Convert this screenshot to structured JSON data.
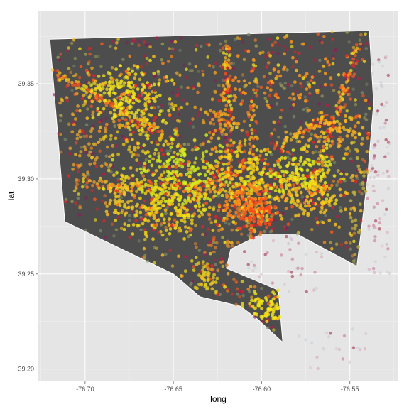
{
  "chart_data": {
    "type": "scatter",
    "title": "",
    "xlabel": "long",
    "ylabel": "lat",
    "xlim": [
      -76.7265,
      -76.5225
    ],
    "ylim": [
      39.1935,
      39.3885
    ],
    "x_ticks": [
      -76.7,
      -76.65,
      -76.6,
      -76.55
    ],
    "x_tick_labels": [
      "-76.70",
      "-76.65",
      "-76.60",
      "-76.55"
    ],
    "y_ticks": [
      39.2,
      39.25,
      39.3,
      39.35
    ],
    "y_tick_labels": [
      "39.20",
      "39.25",
      "39.30",
      "39.35"
    ],
    "grid": true,
    "legend": "none",
    "colors": {
      "panel_background": "#e5e5e5",
      "grid": "#ffffff",
      "boundary_fill": "#4d4d4d",
      "boundary_stroke": "#ffffff"
    },
    "boundary_polygon": {
      "long": [
        -76.7115,
        -76.72,
        -76.539,
        -76.5365,
        -76.54,
        -76.546,
        -76.58,
        -76.6,
        -76.6175,
        -76.62,
        -76.5905,
        -76.588,
        -76.595,
        -76.602,
        -76.612,
        -76.635,
        -76.65,
        -76.6725
      ],
      "lat": [
        39.2775,
        39.3735,
        39.378,
        39.34,
        39.3,
        39.254,
        39.271,
        39.271,
        39.263,
        39.253,
        39.2415,
        39.214,
        39.22,
        39.226,
        39.233,
        39.238,
        39.25,
        39.26
      ]
    },
    "hotspots": [
      {
        "long": -76.672,
        "lat": 39.343,
        "spread_long": 0.01,
        "spread_lat": 0.009,
        "count": 160,
        "color": "#f5e51a"
      },
      {
        "long": -76.69,
        "lat": 39.348,
        "spread_long": 0.006,
        "spread_lat": 0.004,
        "count": 50,
        "color": "#e8d820"
      },
      {
        "long": -76.667,
        "lat": 39.322,
        "spread_long": 0.01,
        "spread_lat": 0.008,
        "count": 80,
        "color": "#e6c21a"
      },
      {
        "long": -76.646,
        "lat": 39.302,
        "spread_long": 0.014,
        "spread_lat": 0.01,
        "count": 240,
        "color": "#d6f01c"
      },
      {
        "long": -76.655,
        "lat": 39.285,
        "spread_long": 0.014,
        "spread_lat": 0.007,
        "count": 200,
        "color": "#f2d414"
      },
      {
        "long": -76.68,
        "lat": 39.292,
        "spread_long": 0.008,
        "spread_lat": 0.005,
        "count": 60,
        "color": "#f0c828"
      },
      {
        "long": -76.612,
        "lat": 39.3,
        "spread_long": 0.01,
        "spread_lat": 0.01,
        "count": 160,
        "color": "#f0d21a"
      },
      {
        "long": -76.608,
        "lat": 39.287,
        "spread_long": 0.008,
        "spread_lat": 0.006,
        "count": 120,
        "color": "#ff8a1c"
      },
      {
        "long": -76.602,
        "lat": 39.282,
        "spread_long": 0.006,
        "spread_lat": 0.004,
        "count": 80,
        "color": "#ff4b1c"
      },
      {
        "long": -76.582,
        "lat": 39.303,
        "spread_long": 0.012,
        "spread_lat": 0.007,
        "count": 200,
        "color": "#e6ee1c"
      },
      {
        "long": -76.57,
        "lat": 39.29,
        "spread_long": 0.01,
        "spread_lat": 0.006,
        "count": 120,
        "color": "#ffc81c"
      },
      {
        "long": -76.56,
        "lat": 39.325,
        "spread_long": 0.012,
        "spread_lat": 0.006,
        "count": 90,
        "color": "#ffb41c"
      },
      {
        "long": -76.597,
        "lat": 39.233,
        "spread_long": 0.006,
        "spread_lat": 0.004,
        "count": 80,
        "color": "#f5e51a"
      },
      {
        "long": -76.63,
        "lat": 39.248,
        "spread_long": 0.006,
        "spread_lat": 0.004,
        "count": 50,
        "color": "#e0c820"
      },
      {
        "long": -76.62,
        "lat": 39.335,
        "spread_long": 0.008,
        "spread_lat": 0.01,
        "count": 70,
        "color": "#f0a020"
      },
      {
        "long": -76.585,
        "lat": 39.355,
        "spread_long": 0.015,
        "spread_lat": 0.008,
        "count": 70,
        "color": "#ff9a1c"
      },
      {
        "long": -76.7,
        "lat": 39.315,
        "spread_long": 0.01,
        "spread_lat": 0.015,
        "count": 70,
        "color": "#e0a030"
      },
      {
        "long": -76.545,
        "lat": 39.292,
        "spread_long": 0.006,
        "spread_lat": 0.02,
        "count": 70,
        "color": "#c0b040"
      },
      {
        "long": -76.615,
        "lat": 39.265,
        "spread_long": 0.012,
        "spread_lat": 0.01,
        "count": 50,
        "color": "#d08030"
      }
    ],
    "scatter_colors": [
      "#f5e51a",
      "#ffc21c",
      "#ff8c1c",
      "#ff5a1c",
      "#e0252a",
      "#b81c46",
      "#8a1c5a",
      "#a0a050",
      "#7a8a6a"
    ],
    "outlier_colors": [
      "#c8d0dc",
      "#d6a8c0",
      "#c87896",
      "#a0304a",
      "#d4c8c8"
    ]
  }
}
